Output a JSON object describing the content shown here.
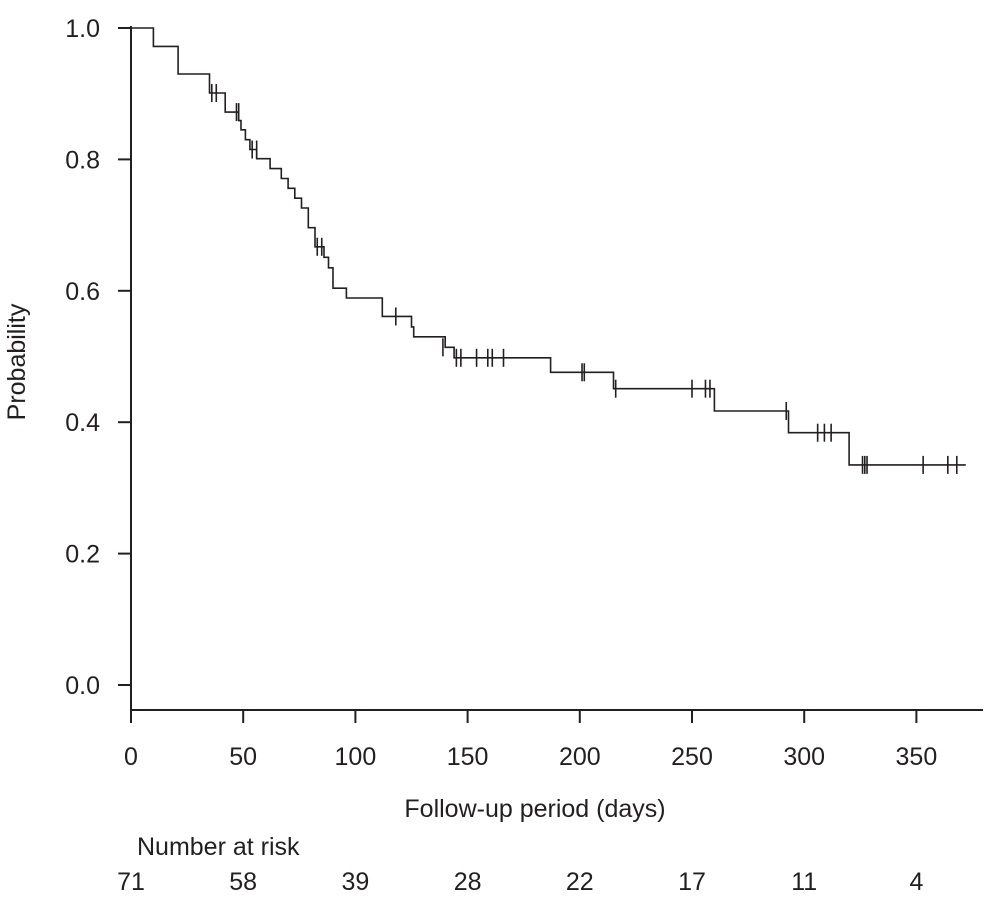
{
  "chart_data": {
    "type": "line",
    "subtype": "kaplan-meier survival curve",
    "xlabel": "Follow-up period (days)",
    "ylabel": "Probability",
    "xlim": [
      0,
      370
    ],
    "ylim": [
      0.0,
      1.0
    ],
    "x_ticks": [
      0,
      50,
      100,
      150,
      200,
      250,
      300,
      350
    ],
    "y_ticks": [
      0.0,
      0.2,
      0.4,
      0.6,
      0.8,
      1.0
    ],
    "x_tick_labels": [
      "0",
      "50",
      "100",
      "150",
      "200",
      "250",
      "300",
      "350"
    ],
    "y_tick_labels": [
      "0.0",
      "0.2",
      "0.4",
      "0.6",
      "0.8",
      "1.0"
    ],
    "grid": false,
    "legend": "none",
    "line_color": "#231f20",
    "steps": [
      {
        "x": 0,
        "y": 1.0
      },
      {
        "x": 10,
        "y": 0.972
      },
      {
        "x": 21,
        "y": 0.93
      },
      {
        "x": 35,
        "y": 0.901
      },
      {
        "x": 42,
        "y": 0.872
      },
      {
        "x": 48,
        "y": 0.859
      },
      {
        "x": 49,
        "y": 0.845
      },
      {
        "x": 51,
        "y": 0.83
      },
      {
        "x": 53,
        "y": 0.815
      },
      {
        "x": 56,
        "y": 0.801
      },
      {
        "x": 62,
        "y": 0.786
      },
      {
        "x": 67,
        "y": 0.771
      },
      {
        "x": 70,
        "y": 0.756
      },
      {
        "x": 73,
        "y": 0.741
      },
      {
        "x": 76,
        "y": 0.726
      },
      {
        "x": 79,
        "y": 0.696
      },
      {
        "x": 82,
        "y": 0.667
      },
      {
        "x": 86,
        "y": 0.651
      },
      {
        "x": 88,
        "y": 0.635
      },
      {
        "x": 90,
        "y": 0.604
      },
      {
        "x": 96,
        "y": 0.589
      },
      {
        "x": 112,
        "y": 0.561
      },
      {
        "x": 125,
        "y": 0.545
      },
      {
        "x": 126,
        "y": 0.53
      },
      {
        "x": 140,
        "y": 0.514
      },
      {
        "x": 144,
        "y": 0.498
      },
      {
        "x": 187,
        "y": 0.476
      },
      {
        "x": 215,
        "y": 0.451
      },
      {
        "x": 260,
        "y": 0.417
      },
      {
        "x": 293,
        "y": 0.384
      },
      {
        "x": 320,
        "y": 0.335
      }
    ],
    "end_x": 372,
    "censored": [
      {
        "x": 36,
        "y": 0.901
      },
      {
        "x": 38,
        "y": 0.901
      },
      {
        "x": 47,
        "y": 0.872
      },
      {
        "x": 48,
        "y": 0.872
      },
      {
        "x": 54,
        "y": 0.815
      },
      {
        "x": 56,
        "y": 0.815
      },
      {
        "x": 83,
        "y": 0.667
      },
      {
        "x": 85,
        "y": 0.667
      },
      {
        "x": 118,
        "y": 0.561
      },
      {
        "x": 139,
        "y": 0.514
      },
      {
        "x": 145,
        "y": 0.498
      },
      {
        "x": 147,
        "y": 0.498
      },
      {
        "x": 154,
        "y": 0.498
      },
      {
        "x": 159,
        "y": 0.498
      },
      {
        "x": 161,
        "y": 0.498
      },
      {
        "x": 166,
        "y": 0.498
      },
      {
        "x": 201,
        "y": 0.476
      },
      {
        "x": 202,
        "y": 0.476
      },
      {
        "x": 216,
        "y": 0.451
      },
      {
        "x": 250,
        "y": 0.451
      },
      {
        "x": 256,
        "y": 0.451
      },
      {
        "x": 258,
        "y": 0.451
      },
      {
        "x": 292,
        "y": 0.417
      },
      {
        "x": 306,
        "y": 0.384
      },
      {
        "x": 309,
        "y": 0.384
      },
      {
        "x": 312,
        "y": 0.384
      },
      {
        "x": 326,
        "y": 0.335
      },
      {
        "x": 327,
        "y": 0.335
      },
      {
        "x": 328,
        "y": 0.335
      },
      {
        "x": 353,
        "y": 0.335
      },
      {
        "x": 364,
        "y": 0.335
      },
      {
        "x": 368,
        "y": 0.335
      }
    ],
    "risk_table": {
      "title": "Number at risk",
      "times": [
        0,
        50,
        100,
        150,
        200,
        250,
        300,
        350
      ],
      "counts": [
        "71",
        "58",
        "39",
        "28",
        "22",
        "17",
        "11",
        "4"
      ]
    }
  }
}
